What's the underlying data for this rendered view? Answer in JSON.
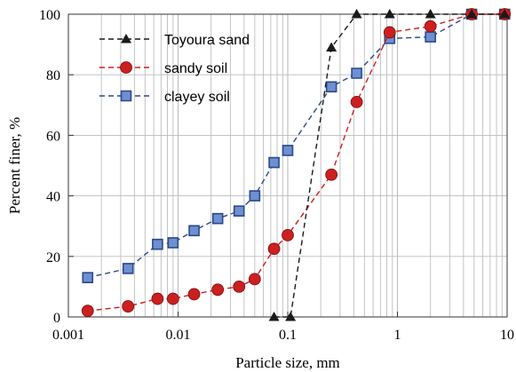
{
  "chart_data": {
    "type": "line",
    "xscale": "log",
    "xlim": [
      0.001,
      10
    ],
    "ylim": [
      0,
      100
    ],
    "xlabel": "Particle size, mm",
    "ylabel": "Percent finer, %",
    "xticks": [
      "0.001",
      "0.01",
      "0.1",
      "1",
      "10"
    ],
    "yticks": [
      "0",
      "20",
      "40",
      "60",
      "80",
      "100"
    ],
    "grid": "vertical",
    "legend_position": "top-left",
    "series": [
      {
        "name": "Toyoura sand",
        "marker": "triangle",
        "color": "#1a1a1a",
        "x": [
          0.075,
          0.106,
          0.25,
          0.425,
          0.85,
          2.0,
          4.75,
          9.5
        ],
        "y": [
          0,
          0,
          89,
          100,
          100,
          100,
          100,
          100
        ]
      },
      {
        "name": "sandy soil",
        "marker": "circle",
        "color": "#cc1f1f",
        "x": [
          0.0015,
          0.0035,
          0.0065,
          0.009,
          0.014,
          0.023,
          0.036,
          0.05,
          0.075,
          0.1,
          0.25,
          0.425,
          0.85,
          2.0,
          4.75,
          9.5
        ],
        "y": [
          2,
          3.5,
          6,
          6,
          7.5,
          9,
          10,
          12.5,
          22.5,
          27,
          47,
          71,
          94,
          96,
          100,
          100
        ]
      },
      {
        "name": "clayey soil",
        "marker": "square",
        "color": "#2a4a8a",
        "x": [
          0.0015,
          0.0035,
          0.0065,
          0.009,
          0.014,
          0.023,
          0.036,
          0.05,
          0.075,
          0.1,
          0.25,
          0.425,
          0.85,
          2.0,
          4.75,
          9.5
        ],
        "y": [
          13,
          16,
          24,
          24.5,
          28.5,
          32.5,
          35,
          40,
          51,
          55,
          76,
          80.5,
          92,
          92.5,
          100,
          100
        ]
      }
    ]
  }
}
